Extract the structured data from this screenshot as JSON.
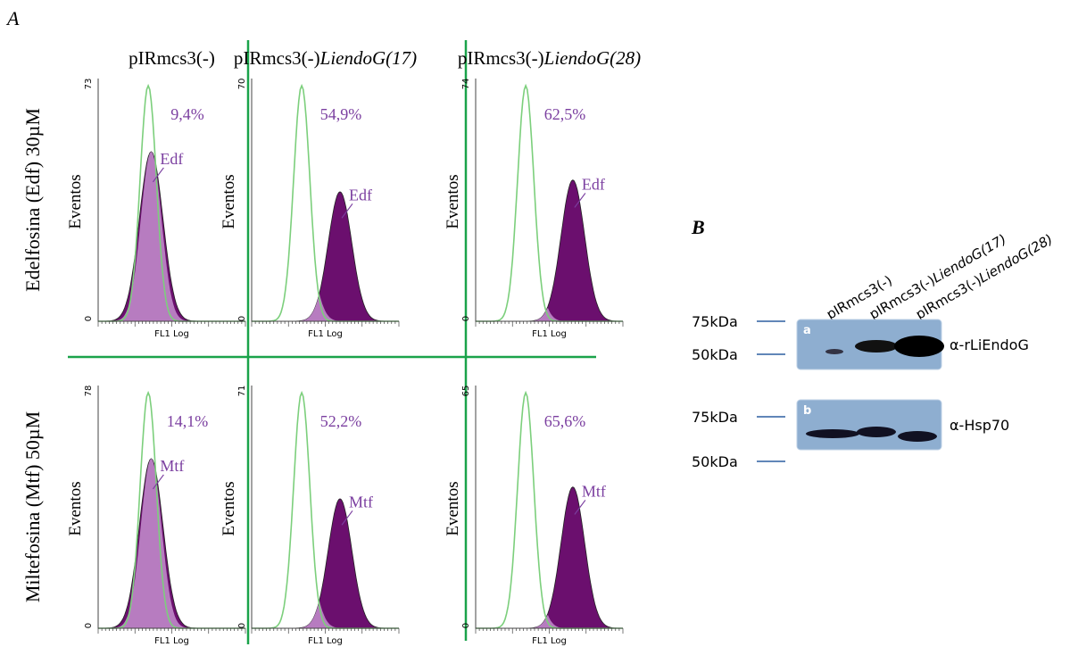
{
  "panel_a": {
    "label": "A",
    "columns": [
      {
        "plain": "pIRmcs3(-)",
        "italic": ""
      },
      {
        "plain": "pIRmcs3(-)",
        "italic": "LiendoG(17)"
      },
      {
        "plain": "pIRmcs3(-)",
        "italic": "LiendoG(28)"
      }
    ],
    "rows": [
      {
        "title": "Edelfosina (Edf) 30µM",
        "panels": [
          {
            "ymax": "73",
            "ymin": "0",
            "ylabel": "Eventos",
            "xlabel": "FL1 Log",
            "percent": "9,4%",
            "drug": "Edf"
          },
          {
            "ymax": "70",
            "ymin": "0",
            "ylabel": "Eventos",
            "xlabel": "FL1 Log",
            "percent": "54,9%",
            "drug": "Edf"
          },
          {
            "ymax": "74",
            "ymin": "0",
            "ylabel": "Eventos",
            "xlabel": "FL1 Log",
            "percent": "62,5%",
            "drug": "Edf"
          }
        ]
      },
      {
        "title": "Miltefosina (Mtf) 50µM",
        "panels": [
          {
            "ymax": "78",
            "ymin": "0",
            "ylabel": "Eventos",
            "xlabel": "FL1 Log",
            "percent": "14,1%",
            "drug": "Mtf"
          },
          {
            "ymax": "71",
            "ymin": "0",
            "ylabel": "Eventos",
            "xlabel": "FL1 Log",
            "percent": "52,2%",
            "drug": "Mtf"
          },
          {
            "ymax": "65",
            "ymin": "0",
            "ylabel": "Eventos",
            "xlabel": "FL1 Log",
            "percent": "65,6%",
            "drug": "Mtf"
          }
        ]
      }
    ]
  },
  "panel_b": {
    "label": "B",
    "lanes": [
      {
        "plain": "pIRmcs3(-)",
        "italic": ""
      },
      {
        "plain": "pIRmcs3(-)",
        "italic": "LiendoG(17)"
      },
      {
        "plain": "pIRmcs3(-)",
        "italic": "LiendoG(28)"
      }
    ],
    "blots": [
      {
        "letter": "a",
        "antibody": "α-rLiEndoG",
        "markers": [
          "75kDa",
          "50kDa"
        ]
      },
      {
        "letter": "b",
        "antibody": "α-Hsp70",
        "markers": [
          "75kDa",
          "50kDa"
        ]
      }
    ]
  }
}
